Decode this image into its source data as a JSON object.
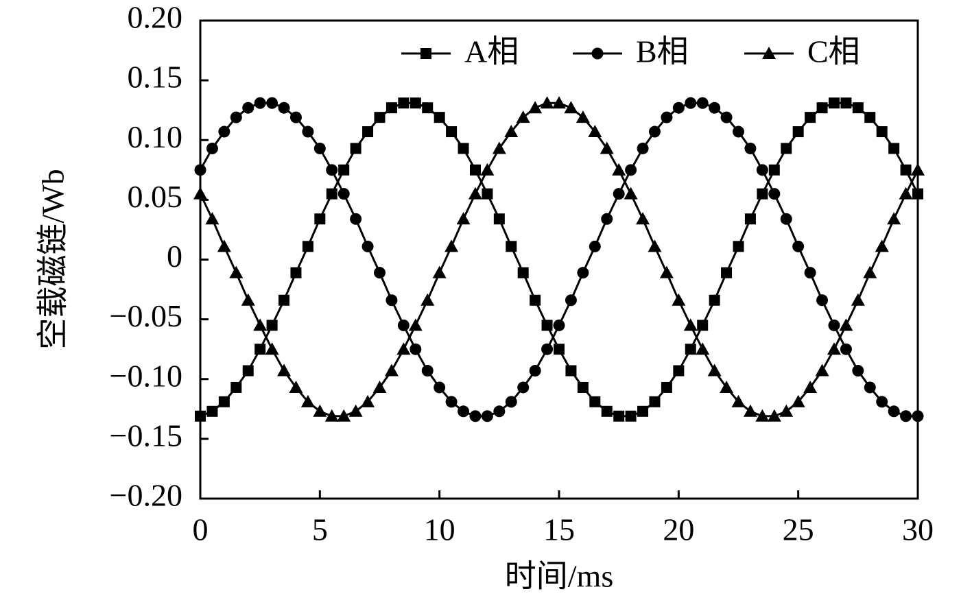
{
  "chart_data": {
    "type": "line",
    "xlabel": "时间/ms",
    "ylabel": "空载磁链/Wb",
    "x": [
      0,
      0.5,
      1,
      1.5,
      2,
      2.5,
      3,
      3.5,
      4,
      4.5,
      5,
      5.5,
      6,
      6.5,
      7,
      7.5,
      8,
      8.5,
      9,
      9.5,
      10,
      10.5,
      11,
      11.5,
      12,
      12.5,
      13,
      13.5,
      14,
      14.5,
      15,
      15.5,
      16,
      16.5,
      17,
      17.5,
      18,
      18.5,
      19,
      19.5,
      20,
      20.5,
      21,
      21.5,
      22,
      22.5,
      23,
      23.5,
      24,
      24.5,
      25,
      25.5,
      26,
      26.5,
      27,
      27.5,
      28,
      28.5,
      29,
      29.5,
      30
    ],
    "series": [
      {
        "name": "A相",
        "color": "#000000",
        "marker": "square",
        "values": [
          -0.131,
          -0.127,
          -0.119,
          -0.107,
          -0.093,
          -0.075,
          -0.055,
          -0.034,
          -0.011,
          0.011,
          0.034,
          0.055,
          0.075,
          0.093,
          0.107,
          0.119,
          0.127,
          0.131,
          0.131,
          0.127,
          0.119,
          0.107,
          0.093,
          0.075,
          0.055,
          0.034,
          0.011,
          -0.011,
          -0.034,
          -0.055,
          -0.075,
          -0.093,
          -0.107,
          -0.119,
          -0.127,
          -0.131,
          -0.131,
          -0.127,
          -0.119,
          -0.107,
          -0.093,
          -0.075,
          -0.055,
          -0.034,
          -0.011,
          0.011,
          0.034,
          0.055,
          0.075,
          0.093,
          0.107,
          0.119,
          0.127,
          0.131,
          0.131,
          0.127,
          0.119,
          0.107,
          0.093,
          0.075,
          0.055
        ]
      },
      {
        "name": "B相",
        "color": "#000000",
        "marker": "circle",
        "values": [
          0.075,
          0.093,
          0.107,
          0.119,
          0.127,
          0.131,
          0.131,
          0.127,
          0.119,
          0.107,
          0.093,
          0.075,
          0.055,
          0.034,
          0.011,
          -0.011,
          -0.034,
          -0.055,
          -0.075,
          -0.093,
          -0.107,
          -0.119,
          -0.127,
          -0.131,
          -0.131,
          -0.127,
          -0.119,
          -0.107,
          -0.093,
          -0.075,
          -0.055,
          -0.034,
          -0.011,
          0.011,
          0.034,
          0.055,
          0.075,
          0.093,
          0.107,
          0.119,
          0.127,
          0.131,
          0.131,
          0.127,
          0.119,
          0.107,
          0.093,
          0.075,
          0.055,
          0.034,
          0.011,
          -0.011,
          -0.034,
          -0.055,
          -0.075,
          -0.093,
          -0.107,
          -0.119,
          -0.127,
          -0.131,
          -0.131
        ]
      },
      {
        "name": "C相",
        "color": "#000000",
        "marker": "triangle",
        "values": [
          0.055,
          0.034,
          0.011,
          -0.011,
          -0.034,
          -0.055,
          -0.075,
          -0.093,
          -0.107,
          -0.119,
          -0.127,
          -0.131,
          -0.131,
          -0.127,
          -0.119,
          -0.107,
          -0.093,
          -0.075,
          -0.055,
          -0.034,
          -0.011,
          0.011,
          0.034,
          0.055,
          0.075,
          0.093,
          0.107,
          0.119,
          0.127,
          0.131,
          0.131,
          0.127,
          0.119,
          0.107,
          0.093,
          0.075,
          0.055,
          0.034,
          0.011,
          -0.011,
          -0.034,
          -0.055,
          -0.075,
          -0.093,
          -0.107,
          -0.119,
          -0.127,
          -0.131,
          -0.131,
          -0.127,
          -0.119,
          -0.107,
          -0.093,
          -0.075,
          -0.055,
          -0.034,
          -0.011,
          0.011,
          0.034,
          0.055,
          0.075
        ]
      }
    ],
    "xlim": [
      0,
      30
    ],
    "xticks": [
      0,
      5,
      10,
      15,
      20,
      25,
      30
    ],
    "ylim": [
      -0.2,
      0.2
    ],
    "yticks": [
      {
        "value": -0.2,
        "label": "−0.20"
      },
      {
        "value": -0.15,
        "label": "−0.15"
      },
      {
        "value": -0.1,
        "label": "−0.10"
      },
      {
        "value": -0.05,
        "label": "−0.05"
      },
      0,
      {
        "value": 0.05,
        "label": "0.05"
      },
      {
        "value": 0.1,
        "label": "0.10"
      },
      0.15,
      {
        "value": 0.2,
        "label": "0.20"
      }
    ],
    "legend": "top-right",
    "grid": false
  }
}
